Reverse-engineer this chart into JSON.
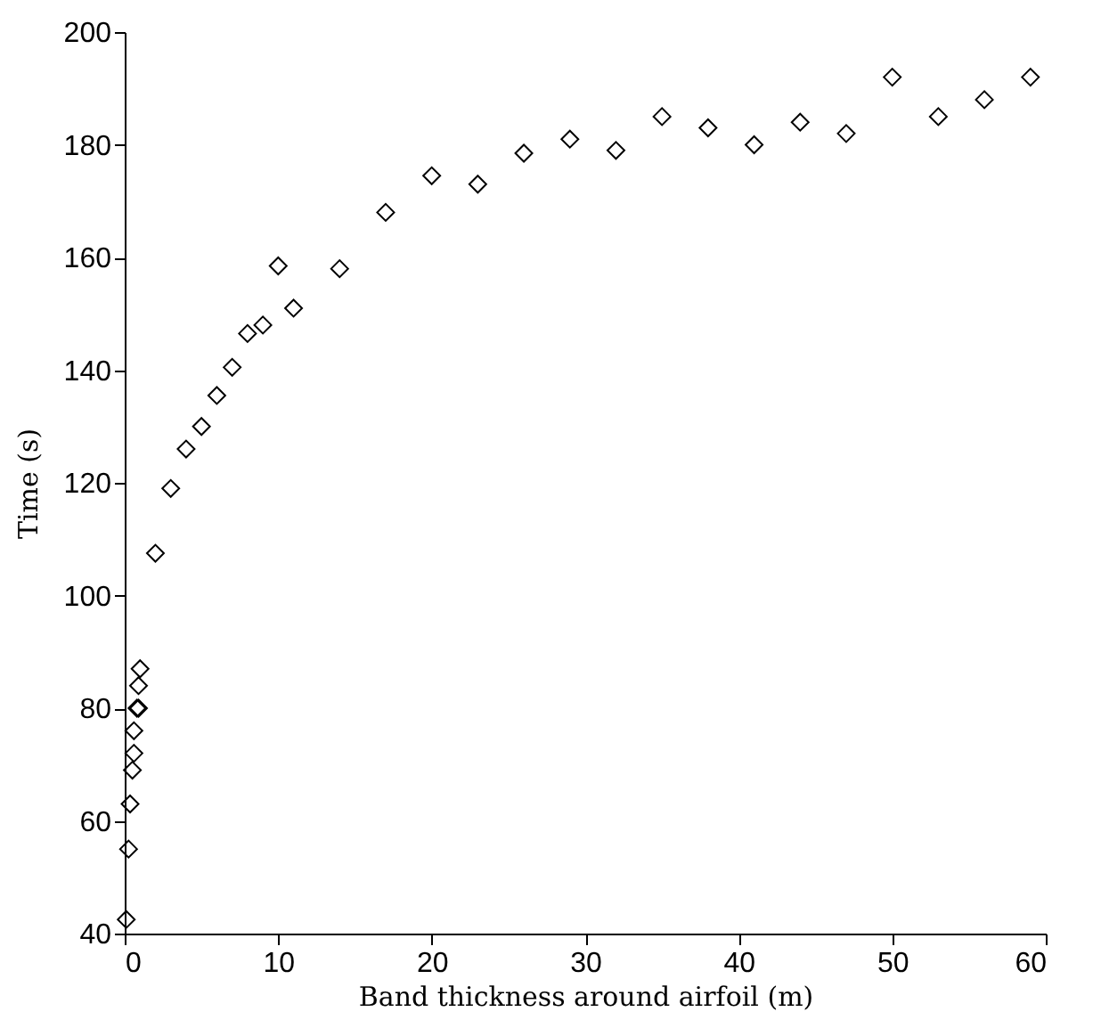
{
  "chart_data": {
    "type": "scatter",
    "xlabel": "Band thickness around airfoil (m)",
    "ylabel": "Time (s)",
    "x": [
      0.1,
      0.25,
      0.35,
      0.5,
      0.6,
      0.6,
      0.8,
      0.9,
      0.9,
      1.0,
      2,
      3,
      4,
      5,
      6,
      7,
      8,
      9,
      10,
      11,
      14,
      17,
      20,
      23,
      26,
      29,
      32,
      35,
      38,
      41,
      44,
      47,
      50,
      53,
      56,
      59
    ],
    "values": [
      42.5,
      55,
      63,
      69,
      72,
      76,
      80,
      80,
      84,
      87,
      107.5,
      119,
      126,
      130,
      135.5,
      140.5,
      146.5,
      148,
      158.5,
      151,
      158,
      168,
      174.5,
      173,
      178.5,
      181,
      179,
      185,
      183,
      180,
      184,
      182,
      192,
      185,
      188,
      192
    ],
    "color": "#000000",
    "marker": "diamond",
    "xlim": [
      0,
      60
    ],
    "xticks": [
      0,
      10,
      20,
      30,
      40,
      50,
      60
    ],
    "ylim": [
      40,
      200
    ],
    "yticks": [
      40,
      60,
      80,
      100,
      120,
      140,
      160,
      180,
      200
    ],
    "grid": false
  }
}
